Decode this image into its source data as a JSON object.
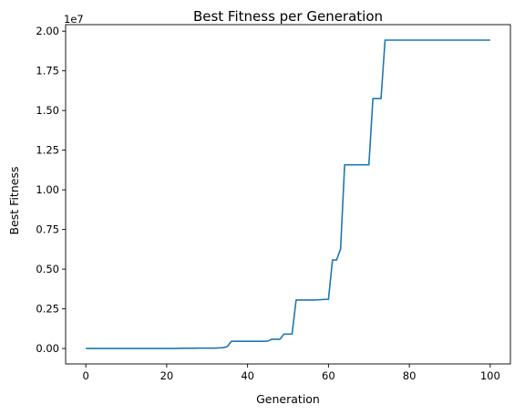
{
  "chart_data": {
    "type": "line",
    "title": "Best Fitness per Generation",
    "xlabel": "Generation",
    "ylabel": "Best Fitness",
    "y_offset_label": "1e7",
    "xlim": [
      -5,
      105
    ],
    "ylim": [
      -0.0972,
      2.0412
    ],
    "x_ticks": [
      0,
      20,
      40,
      60,
      80,
      100
    ],
    "y_ticks": [
      0.0,
      0.25,
      0.5,
      0.75,
      1.0,
      1.25,
      1.5,
      1.75,
      2.0
    ],
    "y_tick_labels": [
      "0.00",
      "0.25",
      "0.50",
      "0.75",
      "1.00",
      "1.25",
      "1.50",
      "1.75",
      "2.00"
    ],
    "grid": false,
    "line_color": "#1f77b4",
    "series": [
      {
        "x": [
          0,
          20,
          22,
          24,
          26,
          28,
          29,
          30,
          32,
          34,
          35,
          36,
          38,
          40,
          42,
          44,
          45,
          46,
          47,
          48,
          49,
          50,
          51,
          52,
          53,
          54,
          56,
          58,
          59,
          60,
          61,
          62,
          63,
          64,
          65,
          66,
          68,
          70,
          71,
          72,
          73,
          74,
          76,
          80,
          90,
          100
        ],
        "y": [
          0.0,
          0.0,
          0.0,
          0.0013,
          0.0013,
          0.0026,
          0.0026,
          0.0026,
          0.0026,
          0.0052,
          0.013,
          0.0455,
          0.0455,
          0.0455,
          0.0455,
          0.0455,
          0.0468,
          0.0585,
          0.0585,
          0.0585,
          0.091,
          0.091,
          0.091,
          0.3055,
          0.3055,
          0.3055,
          0.3055,
          0.3075,
          0.3095,
          0.3095,
          0.5575,
          0.5575,
          0.6275,
          1.1575,
          1.1575,
          1.1575,
          1.1575,
          1.1575,
          1.575,
          1.575,
          1.575,
          1.9435,
          1.9435,
          1.9435,
          1.9435,
          1.9435
        ]
      }
    ]
  }
}
